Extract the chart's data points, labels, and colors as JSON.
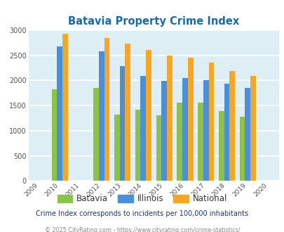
{
  "title": "Batavia Property Crime Index",
  "years": [
    2009,
    2010,
    2011,
    2012,
    2013,
    2014,
    2015,
    2016,
    2017,
    2018,
    2019,
    2020
  ],
  "data_years": [
    2010,
    2012,
    2013,
    2014,
    2015,
    2016,
    2017,
    2018,
    2019
  ],
  "batavia": [
    1830,
    1850,
    1320,
    1420,
    1310,
    1555,
    1555,
    1390,
    1280
  ],
  "illinois": [
    2670,
    2580,
    2280,
    2090,
    1995,
    2050,
    2010,
    1940,
    1850
  ],
  "national": [
    2930,
    2850,
    2730,
    2600,
    2500,
    2460,
    2360,
    2190,
    2095
  ],
  "bar_colors": {
    "batavia": "#8bc34a",
    "illinois": "#4a90d9",
    "national": "#f5a623"
  },
  "ylim": [
    0,
    3000
  ],
  "yticks": [
    0,
    500,
    1000,
    1500,
    2000,
    2500,
    3000
  ],
  "bg_color": "#ddeef5",
  "grid_color": "#ffffff",
  "subtitle": "Crime Index corresponds to incidents per 100,000 inhabitants",
  "footer": "© 2025 CityRating.com - https://www.cityrating.com/crime-statistics/",
  "title_color": "#1a6aaa",
  "subtitle_color": "#1a3a6a",
  "footer_color": "#888888",
  "legend_text_color": "#333333"
}
